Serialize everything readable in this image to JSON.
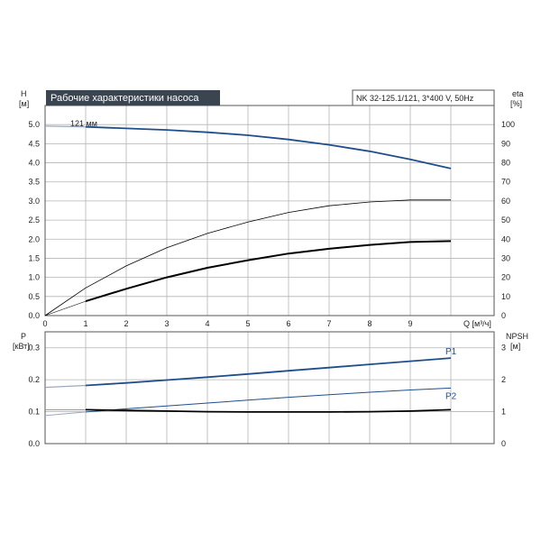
{
  "chart_data": [
    {
      "type": "line",
      "title": "Рабочие характеристики насоса",
      "subtitle": "NK 32-125.1/121, 3*400 V, 50Hz",
      "xlabel": "Q [м³/ч]",
      "ylabel_name": "H",
      "ylabel_unit": "[м]",
      "y2label_name": "eta",
      "y2label_unit": "[%]",
      "xlim": [
        0,
        11
      ],
      "ylim": [
        0,
        5.5
      ],
      "y2lim": [
        0,
        110
      ],
      "x_ticks": [
        "0",
        "1",
        "2",
        "3",
        "4",
        "5",
        "6",
        "7",
        "8",
        "9"
      ],
      "y_ticks": [
        "0.0",
        "0.5",
        "1.0",
        "1.5",
        "2.0",
        "2.5",
        "3.0",
        "3.5",
        "4.0",
        "4.5",
        "5.0"
      ],
      "y2_ticks": [
        "0",
        "10",
        "20",
        "30",
        "40",
        "50",
        "60",
        "70",
        "80",
        "90",
        "100"
      ],
      "grid": true,
      "annotation": "121 мм",
      "colors": {
        "head": "#1f4e8c",
        "efficiency": "#000000",
        "grid": "#b4b4b4"
      },
      "series": [
        {
          "name": "",
          "axis": "left",
          "x": [
            0,
            1,
            2,
            3,
            4,
            5,
            6,
            7,
            8,
            9,
            10
          ],
          "y": [
            4.96,
            4.94,
            4.9,
            4.86,
            4.8,
            4.72,
            4.61,
            4.47,
            4.3,
            4.09,
            3.85
          ]
        },
        {
          "name": "",
          "axis": "right",
          "x": [
            0,
            1,
            2,
            3,
            4,
            5,
            6,
            7,
            8,
            9,
            10
          ],
          "y": [
            0,
            14.5,
            26,
            35.5,
            43,
            49,
            54,
            57.5,
            59.5,
            60.5,
            60.5
          ]
        },
        {
          "name": "",
          "axis": "right",
          "x": [
            1,
            2,
            3,
            4,
            5,
            6,
            7,
            8,
            9,
            10
          ],
          "y": [
            7.5,
            14,
            20,
            25,
            29,
            32.5,
            35,
            37,
            38.5,
            39
          ]
        }
      ]
    },
    {
      "type": "line",
      "ylabel_name": "P",
      "ylabel_unit": "[кВт]",
      "y2label_name": "NPSH",
      "y2label_unit": "[м]",
      "xlim": [
        0,
        11
      ],
      "ylim": [
        0,
        0.35
      ],
      "y2lim": [
        0,
        3.5
      ],
      "y_ticks": [
        "0.0",
        "0.1",
        "0.2",
        "0.3"
      ],
      "y2_ticks": [
        "0",
        "1",
        "2",
        "3"
      ],
      "grid": true,
      "colors": {
        "power": "#1f4e8c",
        "npsh": "#000000"
      },
      "series": [
        {
          "name": "P1",
          "axis": "left",
          "x": [
            1,
            2,
            3,
            4,
            5,
            6,
            7,
            8,
            9,
            10
          ],
          "y": [
            0.182,
            0.19,
            0.199,
            0.208,
            0.218,
            0.228,
            0.238,
            0.248,
            0.258,
            0.268
          ]
        },
        {
          "name": "P2",
          "axis": "left",
          "x": [
            1,
            2,
            3,
            4,
            5,
            6,
            7,
            8,
            9,
            10
          ],
          "y": [
            0.099,
            0.109,
            0.118,
            0.127,
            0.136,
            0.145,
            0.153,
            0.161,
            0.168,
            0.174
          ]
        },
        {
          "name": "",
          "axis": "right",
          "x": [
            1,
            2,
            3,
            4,
            5,
            6,
            7,
            8,
            9,
            10
          ],
          "y": [
            1.06,
            1.04,
            1.02,
            1.0,
            0.99,
            0.99,
            0.99,
            1.0,
            1.02,
            1.06
          ]
        }
      ]
    }
  ]
}
